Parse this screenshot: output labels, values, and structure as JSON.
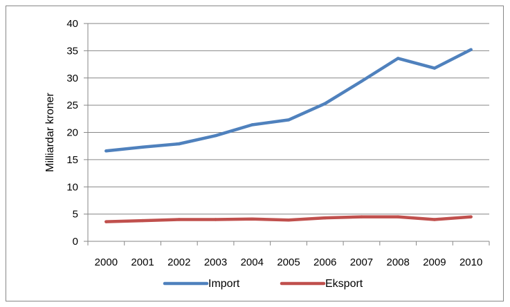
{
  "chart_data": {
    "type": "line",
    "title": "",
    "xlabel": "",
    "ylabel": "Milliardar kroner",
    "categories": [
      "2000",
      "2001",
      "2002",
      "2003",
      "2004",
      "2005",
      "2006",
      "2007",
      "2008",
      "2009",
      "2010"
    ],
    "ylim": [
      0,
      40
    ],
    "yticks": [
      "0",
      "5",
      "10",
      "15",
      "20",
      "25",
      "30",
      "35",
      "40"
    ],
    "grid": "horizontal",
    "legend_position": "bottom",
    "series": [
      {
        "name": "Import",
        "color": "#4f81bd",
        "values": [
          16.6,
          17.3,
          17.9,
          19.4,
          21.4,
          22.3,
          25.3,
          29.4,
          33.6,
          31.8,
          35.2
        ]
      },
      {
        "name": "Eksport",
        "color": "#c0504d",
        "values": [
          3.6,
          3.8,
          4.0,
          4.0,
          4.1,
          3.9,
          4.3,
          4.5,
          4.5,
          4.0,
          4.5
        ]
      }
    ]
  }
}
